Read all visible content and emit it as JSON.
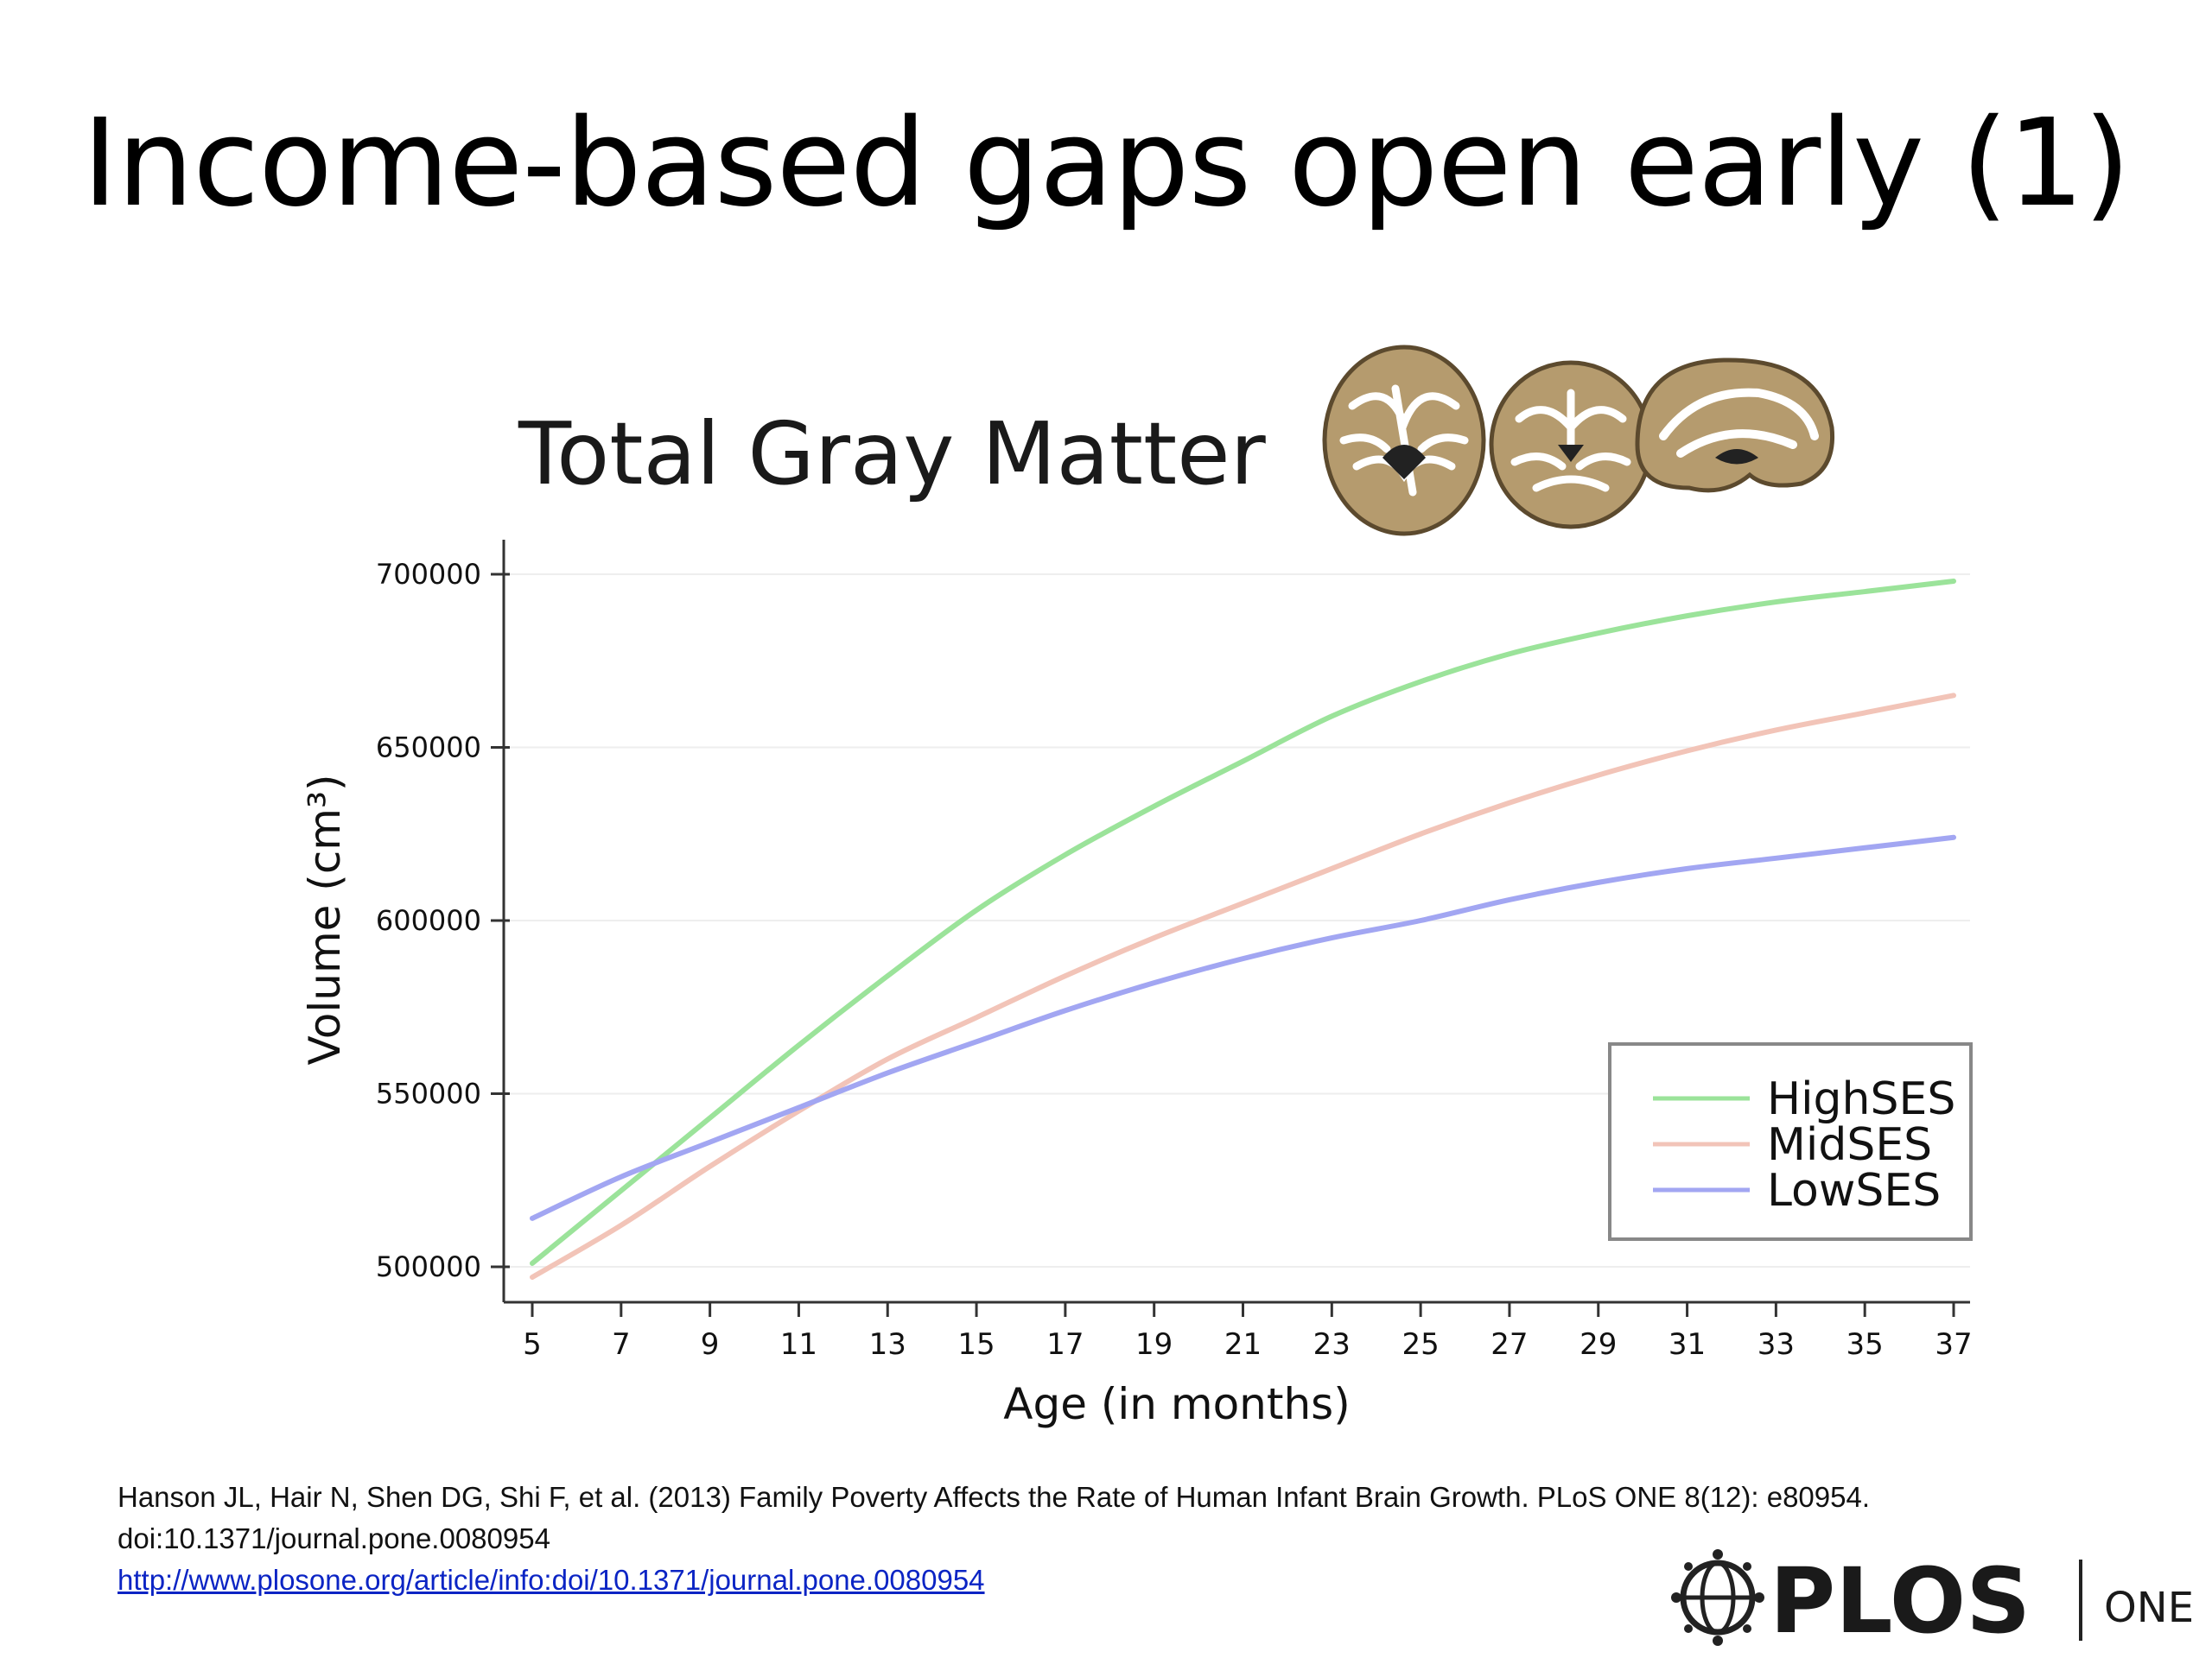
{
  "slide": {
    "title": "Income-based gaps open early (1)",
    "citation_line1": "Hanson JL, Hair N, Shen DG, Shi F, et al. (2013) Family Poverty Affects the Rate of Human Infant Brain Growth. PLoS ONE 8(12): e80954.",
    "citation_line2": "doi:10.1371/journal.pone.0080954",
    "citation_link": "http://www.plosone.org/article/info:doi/10.1371/journal.pone.0080954",
    "logo_text": "PLOS",
    "logo_subtext": "ONE"
  },
  "chart_data": {
    "type": "line",
    "title": "Total Gray Matter",
    "xlabel": "Age (in months)",
    "ylabel": "Volume (cm³)",
    "xlim": [
      4.3,
      37.5
    ],
    "ylim": [
      490000,
      705000
    ],
    "x_ticks": [
      5,
      7,
      9,
      11,
      13,
      15,
      17,
      19,
      21,
      23,
      25,
      27,
      29,
      31,
      33,
      35,
      37
    ],
    "y_ticks": [
      500000,
      550000,
      600000,
      650000,
      700000
    ],
    "grid": true,
    "legend_position": "bottom-right",
    "x": [
      5,
      7,
      9,
      11,
      13,
      15,
      17,
      19,
      21,
      23,
      25,
      27,
      29,
      31,
      33,
      35,
      37
    ],
    "series": [
      {
        "name": "HighSES",
        "color": "#9be39a",
        "values": [
          501000,
          522000,
          543000,
          564000,
          584000,
          603000,
          619000,
          633000,
          646000,
          659000,
          669000,
          677000,
          683000,
          688000,
          692000,
          695000,
          698000
        ]
      },
      {
        "name": "MidSES",
        "color": "#f2c4b8",
        "values": [
          497000,
          512000,
          529000,
          545000,
          560000,
          572000,
          584000,
          595000,
          605000,
          615000,
          625000,
          634000,
          642000,
          649000,
          655000,
          660000,
          665000
        ]
      },
      {
        "name": "LowSES",
        "color": "#a2a6f2",
        "values": [
          514000,
          526000,
          536000,
          546000,
          556000,
          565000,
          574000,
          582000,
          589000,
          595000,
          600000,
          606000,
          611000,
          615000,
          618000,
          621000,
          624000
        ]
      }
    ]
  }
}
